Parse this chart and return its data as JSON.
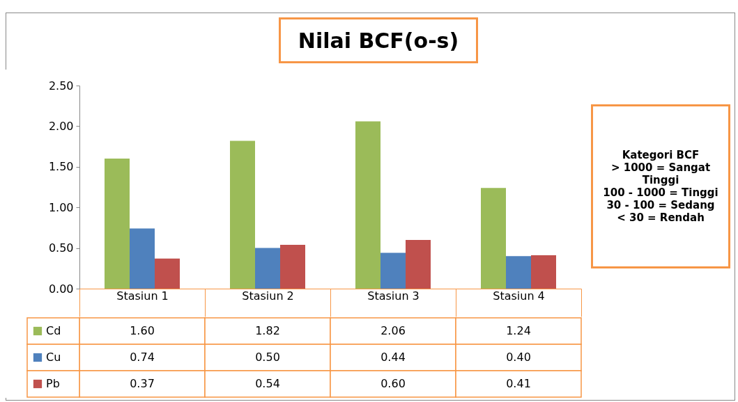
{
  "chart_data": {
    "type": "bar",
    "title": "Nilai BCF(o-s)",
    "categories": [
      "Stasiun 1",
      "Stasiun 2",
      "Stasiun 3",
      "Stasiun 4"
    ],
    "series": [
      {
        "name": "Cd",
        "color": "#9bbb59",
        "values": [
          1.6,
          1.82,
          2.06,
          1.24
        ],
        "value_labels": [
          "1.60",
          "1.82",
          "2.06",
          "1.24"
        ]
      },
      {
        "name": "Cu",
        "color": "#4f81bd",
        "values": [
          0.74,
          0.5,
          0.44,
          0.4
        ],
        "value_labels": [
          "0.74",
          "0.50",
          "0.44",
          "0.40"
        ]
      },
      {
        "name": "Pb",
        "color": "#c0504d",
        "values": [
          0.37,
          0.54,
          0.6,
          0.41
        ],
        "value_labels": [
          "0.37",
          "0.54",
          "0.60",
          "0.41"
        ]
      }
    ],
    "ylim": [
      0,
      2.5
    ],
    "yticks": [
      {
        "value": 0,
        "label": "0.00"
      },
      {
        "value": 0.5,
        "label": "0.50"
      },
      {
        "value": 1,
        "label": "1.00"
      },
      {
        "value": 1.5,
        "label": "1.50"
      },
      {
        "value": 2,
        "label": "2.00"
      },
      {
        "value": 2.5,
        "label": "2.50"
      }
    ],
    "grid": false,
    "legend": "bottom",
    "annotations": [
      "Kategori BCF",
      "> 1000 = Sangat Tinggi",
      "100 - 1000  = Tinggi",
      "30 - 100 = Sedang",
      "< 30 = Rendah"
    ]
  }
}
